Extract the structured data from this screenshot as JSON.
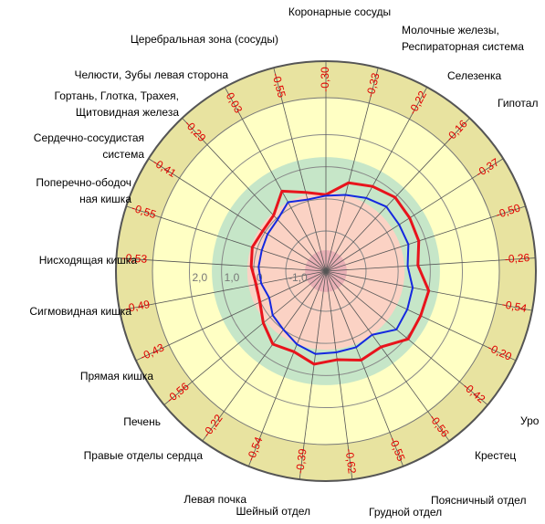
{
  "chart_data": {
    "type": "radar",
    "categories": [
      "Коронарные сосуды",
      [
        "Молочные железы,",
        "Респираторная система"
      ],
      "Селезенка",
      "Гипотал",
      null,
      null,
      null,
      null,
      null,
      "Уро",
      "Крестец",
      "Поясничный отдел",
      "Грудной отдел",
      "Шейный отдел",
      "Левая почка",
      "Правые отделы сердца",
      "Печень",
      "Прямая кишка",
      "Сигмовидная кишка",
      "Нисходящая кишка",
      [
        "Поперечно-ободоч",
        "ная кишка"
      ],
      [
        "Сердечно-сосудистая",
        "система"
      ],
      [
        "Гортань, Глотка, Трахея,",
        "Щитовидная железа"
      ],
      "Челюсти, Зубы левая сторона",
      "Церебральная зона (сосуды)"
    ],
    "values": [
      -0.3,
      -0.33,
      -0.22,
      -0.16,
      -0.37,
      -0.5,
      -0.26,
      -0.54,
      -0.2,
      -0.42,
      -0.56,
      -0.55,
      -0.62,
      -0.39,
      -0.54,
      -0.22,
      -0.56,
      -0.43,
      -0.49,
      -0.53,
      -0.55,
      -0.41,
      -0.29,
      0.03,
      -0.55
    ],
    "value_labels": [
      "-0,30",
      "-0,33",
      "-0,22",
      "-0,16",
      "-0,37",
      "-0,50",
      "-0,26",
      "-0,54",
      "-0,20",
      "-0,42",
      "-0,56",
      "-0,55",
      "-0,62",
      "-0,39",
      "-0,54",
      "-0,22",
      "-0,56",
      "-0,43",
      "-0,49",
      "-0,53",
      "-0,55",
      "-0,41",
      "-0,29",
      "0,03",
      "-0,55"
    ],
    "value_label_color": "#e00000",
    "series": [
      {
        "color": "#e8141c",
        "values": [
          0.13,
          0.59,
          0.76,
          0.9,
          0.84,
          0.79,
          0.62,
          1.01,
          1.01,
          1.07,
          0.67,
          0.73,
          0.53,
          0.67,
          0.45,
          0.56,
          0.28,
          0.02,
          -0.04,
          0.08,
          0.16,
          0.08,
          0.13,
          0.59,
          0.28
        ]
      },
      {
        "color": "#1428e0",
        "values": [
          0.1,
          0.2,
          0.35,
          0.5,
          0.45,
          0.45,
          0.3,
          0.5,
          0.55,
          0.6,
          0.2,
          0.3,
          0.3,
          0.35,
          0.2,
          0.0,
          -0.1,
          -0.3,
          -0.2,
          -0.15,
          -0.15,
          -0.1,
          -0.05,
          0.2,
          0.05
        ]
      }
    ],
    "rlim": [
      -2.25,
      3.15
    ],
    "rticks": [
      {
        "value": 2,
        "label": "2,0"
      },
      {
        "value": 1,
        "label": "1,0"
      },
      0,
      {
        "value": -1,
        "label": "-1,0"
      }
    ],
    "bands": [
      {
        "from": 1.3,
        "to": 3.15,
        "color": "#ffffc4"
      },
      {
        "from": 0.2,
        "to": 1.3,
        "color": "#c6e6c8"
      },
      {
        "from": -1.6,
        "to": 0.2,
        "color": "#fbd2c4"
      },
      {
        "from": -2.25,
        "to": -1.6,
        "color": "#eab0b6"
      }
    ]
  }
}
